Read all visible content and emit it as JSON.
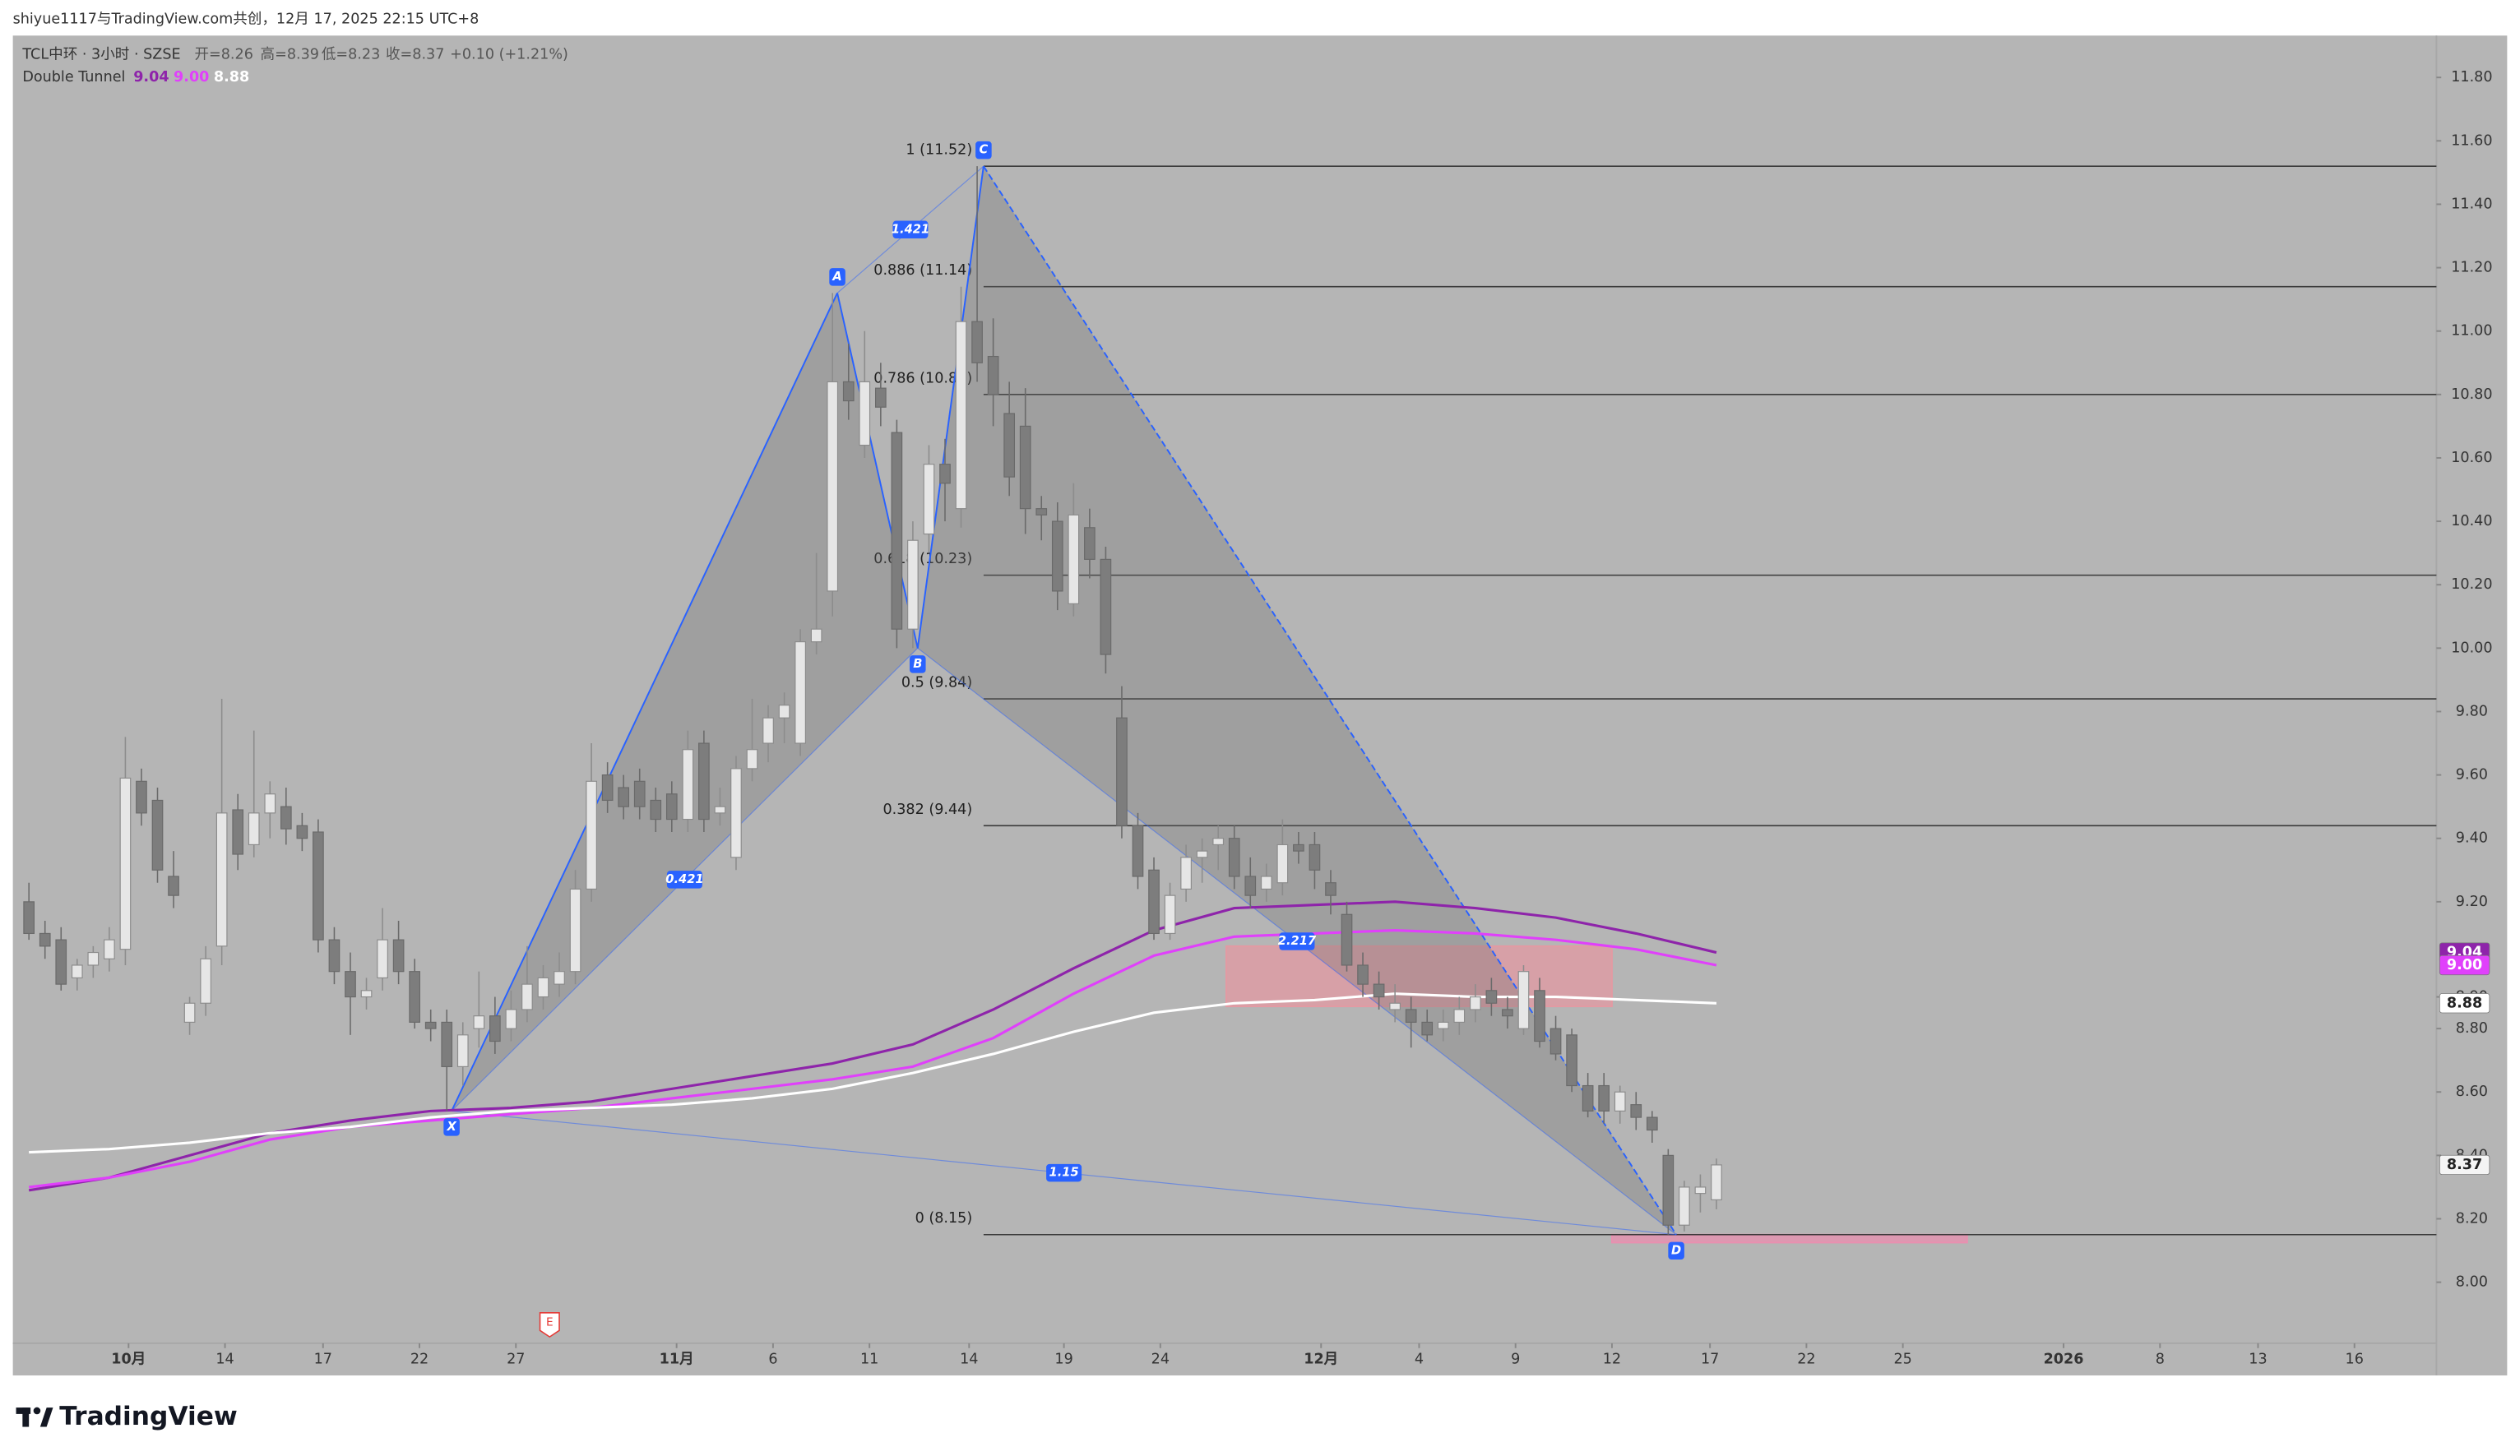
{
  "header": {
    "attribution": "shiyue1117与TradingView.com共创，12月 17, 2025 22:15 UTC+8",
    "logo": "TradingView"
  },
  "chart_data": {
    "type": "candlestick",
    "title": "TCL中环 · 3小时 · SZSE",
    "ohlc_legend": [
      "开=8.26",
      "高=8.39",
      "低=8.23",
      "收=8.37",
      "+0.10 (+1.21%)"
    ],
    "up_color": "#e6e6e6",
    "down_color": "#7d7d7d",
    "open": [
      9.2,
      9.1,
      9.08,
      8.96,
      9.0,
      9.02,
      9.05,
      9.58,
      9.52,
      9.28,
      8.82,
      8.88,
      9.06,
      9.49,
      9.38,
      9.48,
      9.5,
      9.44,
      9.42,
      9.08,
      8.98,
      8.9,
      8.96,
      9.08,
      8.98,
      8.82,
      8.82,
      8.68,
      8.8,
      8.84,
      8.8,
      8.86,
      8.9,
      8.94,
      8.98,
      9.24,
      9.6,
      9.56,
      9.58,
      9.52,
      9.54,
      9.46,
      9.7,
      9.48,
      9.34,
      9.62,
      9.7,
      9.78,
      9.7,
      10.02,
      10.18,
      10.84,
      10.64,
      10.82,
      10.68,
      10.06,
      10.36,
      10.58,
      10.44,
      11.03,
      10.92,
      10.74,
      10.7,
      10.44,
      10.4,
      10.14,
      10.38,
      10.28,
      9.78,
      9.44,
      9.3,
      9.1,
      9.24,
      9.34,
      9.38,
      9.4,
      9.28,
      9.24,
      9.26,
      9.38,
      9.38,
      9.26,
      9.16,
      9.0,
      8.94,
      8.86,
      8.86,
      8.82,
      8.8,
      8.82,
      8.86,
      8.92,
      8.86,
      8.8,
      8.92,
      8.8,
      8.78,
      8.62,
      8.62,
      8.54,
      8.56,
      8.52,
      8.4,
      8.18,
      8.28,
      8.26
    ],
    "high": [
      9.26,
      9.14,
      9.12,
      9.02,
      9.06,
      9.12,
      9.72,
      9.62,
      9.56,
      9.36,
      8.9,
      9.06,
      9.84,
      9.54,
      9.74,
      9.58,
      9.56,
      9.48,
      9.46,
      9.12,
      9.04,
      8.96,
      9.18,
      9.14,
      9.02,
      8.86,
      8.86,
      8.82,
      8.98,
      8.9,
      8.92,
      9.06,
      9.0,
      9.04,
      9.3,
      9.7,
      9.64,
      9.6,
      9.62,
      9.56,
      9.58,
      9.74,
      9.74,
      9.56,
      9.66,
      9.84,
      9.82,
      9.86,
      10.06,
      10.3,
      11.12,
      10.96,
      11.0,
      10.9,
      10.72,
      10.4,
      10.64,
      10.66,
      11.14,
      11.52,
      11.04,
      10.84,
      10.82,
      10.48,
      10.46,
      10.52,
      10.44,
      10.32,
      9.88,
      9.48,
      9.34,
      9.26,
      9.38,
      9.4,
      9.44,
      9.44,
      9.34,
      9.32,
      9.46,
      9.42,
      9.42,
      9.3,
      9.2,
      9.04,
      8.98,
      8.94,
      8.9,
      8.86,
      8.86,
      8.9,
      8.94,
      8.96,
      8.9,
      9.0,
      8.96,
      8.84,
      8.8,
      8.66,
      8.66,
      8.62,
      8.6,
      8.54,
      8.42,
      8.32,
      8.34,
      8.39
    ],
    "low": [
      9.08,
      9.02,
      8.92,
      8.92,
      8.96,
      8.98,
      9.0,
      9.44,
      9.26,
      9.18,
      8.78,
      8.84,
      9.0,
      9.3,
      9.34,
      9.4,
      9.38,
      9.36,
      9.04,
      8.94,
      8.78,
      8.86,
      8.92,
      8.94,
      8.8,
      8.76,
      8.54,
      8.62,
      8.74,
      8.72,
      8.76,
      8.82,
      8.86,
      8.9,
      8.94,
      9.2,
      9.48,
      9.46,
      9.46,
      9.42,
      9.42,
      9.42,
      9.42,
      9.44,
      9.3,
      9.58,
      9.64,
      9.7,
      9.66,
      9.98,
      10.1,
      10.72,
      10.6,
      10.7,
      10.0,
      10.0,
      10.3,
      10.4,
      10.38,
      10.84,
      10.7,
      10.48,
      10.36,
      10.34,
      10.12,
      10.1,
      10.22,
      9.92,
      9.4,
      9.24,
      9.08,
      9.08,
      9.2,
      9.26,
      9.3,
      9.24,
      9.18,
      9.2,
      9.22,
      9.32,
      9.24,
      9.16,
      8.98,
      8.9,
      8.86,
      8.82,
      8.74,
      8.76,
      8.76,
      8.78,
      8.82,
      8.84,
      8.8,
      8.78,
      8.74,
      8.7,
      8.6,
      8.52,
      8.5,
      8.5,
      8.48,
      8.44,
      8.15,
      8.16,
      8.22,
      8.23
    ],
    "close": [
      9.1,
      9.06,
      8.94,
      9.0,
      9.04,
      9.08,
      9.59,
      9.48,
      9.3,
      9.22,
      8.88,
      9.02,
      9.48,
      9.35,
      9.48,
      9.54,
      9.43,
      9.4,
      9.08,
      8.98,
      8.9,
      8.92,
      9.08,
      8.98,
      8.82,
      8.8,
      8.68,
      8.78,
      8.84,
      8.76,
      8.86,
      8.94,
      8.96,
      8.98,
      9.24,
      9.58,
      9.52,
      9.5,
      9.5,
      9.46,
      9.46,
      9.68,
      9.46,
      9.5,
      9.62,
      9.68,
      9.78,
      9.82,
      10.02,
      10.06,
      10.84,
      10.78,
      10.84,
      10.76,
      10.06,
      10.34,
      10.58,
      10.52,
      11.03,
      10.9,
      10.8,
      10.54,
      10.44,
      10.42,
      10.18,
      10.42,
      10.28,
      9.98,
      9.44,
      9.28,
      9.1,
      9.22,
      9.34,
      9.36,
      9.4,
      9.28,
      9.22,
      9.28,
      9.38,
      9.36,
      9.3,
      9.22,
      9.0,
      8.94,
      8.9,
      8.88,
      8.82,
      8.78,
      8.82,
      8.86,
      8.9,
      8.88,
      8.84,
      8.98,
      8.76,
      8.72,
      8.62,
      8.54,
      8.54,
      8.6,
      8.52,
      8.48,
      8.18,
      8.3,
      8.3,
      8.37
    ],
    "xlim": [
      -1,
      149.8
    ],
    "xticks": [
      {
        "value": 6.2,
        "label": "10月"
      },
      {
        "value": 12.2,
        "label": "14"
      },
      {
        "value": 18.3,
        "label": "17"
      },
      {
        "value": 24.3,
        "label": "22"
      },
      {
        "value": 30.3,
        "label": "27"
      },
      {
        "value": 40.3,
        "label": "11月"
      },
      {
        "value": 46.3,
        "label": "6"
      },
      {
        "value": 52.3,
        "label": "11"
      },
      {
        "value": 58.5,
        "label": "14"
      },
      {
        "value": 64.4,
        "label": "19"
      },
      {
        "value": 70.4,
        "label": "24"
      },
      {
        "value": 80.4,
        "label": "12月"
      },
      {
        "value": 86.5,
        "label": "4"
      },
      {
        "value": 92.5,
        "label": "9"
      },
      {
        "value": 98.5,
        "label": "12"
      },
      {
        "value": 104.6,
        "label": "17"
      },
      {
        "value": 110.6,
        "label": "22"
      },
      {
        "value": 116.6,
        "label": "25"
      },
      {
        "value": 126.6,
        "label": "2026"
      },
      {
        "value": 132.6,
        "label": "8"
      },
      {
        "value": 138.7,
        "label": "13"
      },
      {
        "value": 144.7,
        "label": "16"
      }
    ],
    "ylim": [
      7.706,
      11.932
    ],
    "yticks": [
      {
        "value": 8,
        "label": "8.00"
      },
      {
        "value": 8.2,
        "label": "8.20"
      },
      {
        "value": 8.4,
        "label": "8.40"
      },
      {
        "value": 8.6,
        "label": "8.60"
      },
      {
        "value": 8.8,
        "label": "8.80"
      },
      {
        "value": 8.9,
        "label": "8.90"
      },
      {
        "value": 9.2,
        "label": "9.20"
      },
      {
        "value": 9.4,
        "label": "9.40"
      },
      {
        "value": 9.6,
        "label": "9.60"
      },
      {
        "value": 9.8,
        "label": "9.80"
      },
      {
        "value": 10,
        "label": "10.00"
      },
      {
        "value": 10.2,
        "label": "10.20"
      },
      {
        "value": 10.4,
        "label": "10.40"
      },
      {
        "value": 10.6,
        "label": "10.60"
      },
      {
        "value": 10.8,
        "label": "10.80"
      },
      {
        "value": 11,
        "label": "11.00"
      },
      {
        "value": 11.2,
        "label": "11.20"
      },
      {
        "value": 11.4,
        "label": "11.40"
      },
      {
        "value": 11.6,
        "label": "11.60"
      },
      {
        "value": 11.8,
        "label": "11.80"
      }
    ],
    "indicator": {
      "name": "Double Tunnel",
      "x": [
        0,
        5,
        10,
        15,
        20,
        25,
        30,
        35,
        40,
        45,
        50,
        55,
        60,
        65,
        70,
        75,
        80,
        85,
        90,
        95,
        100,
        105
      ],
      "series": [
        {
          "color": "#8e24aa",
          "last_label": "9.04",
          "values": [
            8.29,
            8.33,
            8.4,
            8.47,
            8.51,
            8.54,
            8.55,
            8.57,
            8.61,
            8.65,
            8.69,
            8.75,
            8.86,
            8.99,
            9.11,
            9.18,
            9.19,
            9.2,
            9.18,
            9.15,
            9.1,
            9.04
          ]
        },
        {
          "color": "#e040fb",
          "last_label": "9.00",
          "values": [
            8.3,
            8.33,
            8.38,
            8.45,
            8.49,
            8.51,
            8.53,
            8.55,
            8.58,
            8.61,
            8.64,
            8.68,
            8.77,
            8.91,
            9.03,
            9.09,
            9.1,
            9.11,
            9.1,
            9.08,
            9.05,
            9.0
          ]
        },
        {
          "color": "#ffffff",
          "last_label": "8.88",
          "values": [
            8.41,
            8.42,
            8.44,
            8.47,
            8.49,
            8.52,
            8.54,
            8.55,
            8.56,
            8.58,
            8.61,
            8.66,
            8.72,
            8.79,
            8.85,
            8.88,
            8.89,
            8.91,
            8.9,
            8.9,
            8.89,
            8.88
          ]
        }
      ]
    },
    "pattern": {
      "color": "#2962ff",
      "points": [
        {
          "label": "X",
          "x": 26.3,
          "y": 8.54
        },
        {
          "label": "A",
          "x": 50.3,
          "y": 11.12
        },
        {
          "label": "B",
          "x": 55.3,
          "y": 10.0
        },
        {
          "label": "C",
          "x": 59.4,
          "y": 11.52
        },
        {
          "label": "D",
          "x": 102.5,
          "y": 8.15
        }
      ],
      "ratios": [
        "0.421",
        "1.421",
        "2.217",
        "1.15"
      ]
    },
    "fib": {
      "x": 59.4,
      "levels": [
        {
          "value": 11.52,
          "label": "1 (11.52)"
        },
        {
          "value": 11.14,
          "label": "0.886 (11.14)"
        },
        {
          "value": 10.8,
          "label": "0.786 (10.80)"
        },
        {
          "value": 10.23,
          "label": "0.618 (10.23)"
        },
        {
          "value": 9.84,
          "label": "0.5 (9.84)"
        },
        {
          "value": 9.44,
          "label": "0.382 (9.44)"
        },
        {
          "value": 8.15,
          "label": "0 (8.15)"
        }
      ]
    },
    "zones": [
      {
        "x": [
          74.5,
          98.5
        ],
        "y": [
          8.87,
          9.06
        ],
        "color": "#e39aa3"
      },
      {
        "x": [
          98.5,
          120.6
        ],
        "y": [
          8.125,
          8.15
        ],
        "color": "#e98fb0"
      }
    ],
    "events": [
      {
        "x": 32.4,
        "label": "E"
      }
    ]
  }
}
